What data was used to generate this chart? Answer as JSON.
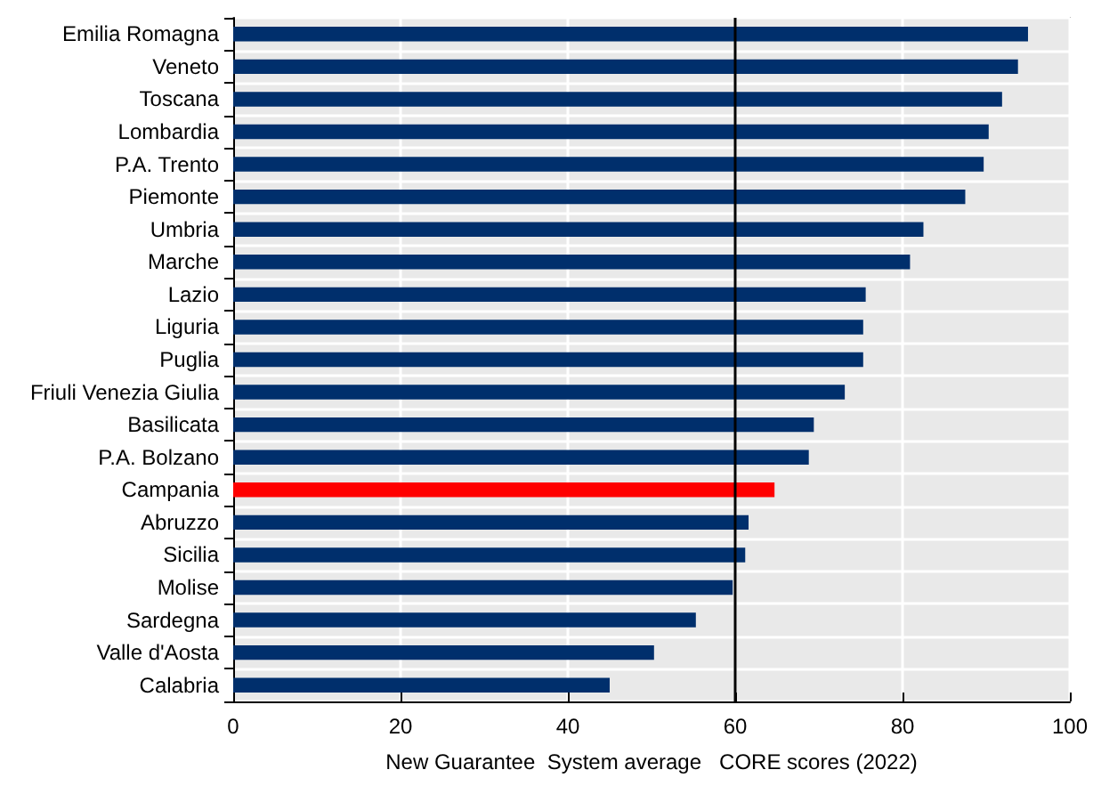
{
  "chart_data": {
    "type": "bar",
    "orientation": "horizontal",
    "xlabel": "New Guarantee  System average   CORE scores (2022)",
    "categories": [
      "Emilia Romagna",
      "Veneto",
      "Toscana",
      "Lombardia",
      "P.A. Trento",
      "Piemonte",
      "Umbria",
      "Marche",
      "Lazio",
      "Liguria",
      "Puglia",
      "Friuli Venezia Giulia",
      "Basilicata",
      "P.A. Bolzano",
      "Campania",
      "Abruzzo",
      "Sicilia",
      "Molise",
      "Sardegna",
      "Valle d'Aosta",
      "Calabria"
    ],
    "values": [
      95.0,
      93.8,
      91.9,
      90.3,
      89.7,
      87.5,
      82.5,
      80.9,
      75.6,
      75.3,
      75.3,
      73.1,
      69.4,
      68.8,
      64.7,
      61.6,
      61.2,
      59.7,
      55.3,
      50.3,
      45.0
    ],
    "colors": [
      "#002f6c",
      "#002f6c",
      "#002f6c",
      "#002f6c",
      "#002f6c",
      "#002f6c",
      "#002f6c",
      "#002f6c",
      "#002f6c",
      "#002f6c",
      "#002f6c",
      "#002f6c",
      "#002f6c",
      "#002f6c",
      "#ff0000",
      "#002f6c",
      "#002f6c",
      "#002f6c",
      "#002f6c",
      "#002f6c",
      "#002f6c"
    ],
    "xlim": [
      0,
      100
    ],
    "xticks": [
      0,
      20,
      40,
      60,
      80,
      100
    ],
    "ref_lines": [
      {
        "axis": "x",
        "value": 60,
        "color": "#000000"
      }
    ],
    "grid": true
  }
}
